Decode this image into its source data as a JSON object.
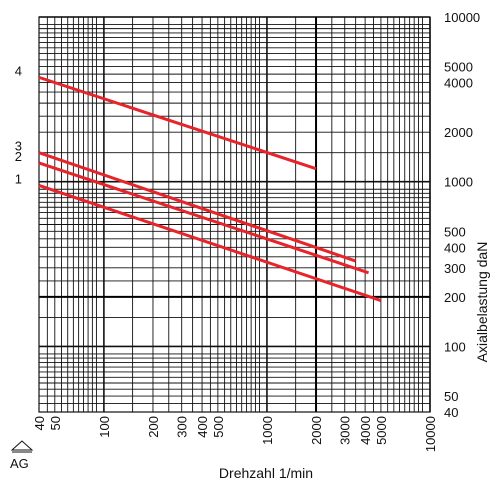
{
  "chart_data": {
    "type": "line",
    "title": "",
    "xlabel": "Drehzahl 1/min",
    "ylabel": "Axialbelastung daN",
    "x_scale": "log",
    "y_scale": "log",
    "xlim": [
      40,
      10000
    ],
    "ylim": [
      40,
      10000
    ],
    "x_ticks": [
      "40",
      "50",
      "100",
      "200",
      "300",
      "400",
      "500",
      "1000",
      "2000",
      "3000",
      "4000",
      "5000",
      "10000"
    ],
    "y_ticks": [
      "10000",
      "5000",
      "4000",
      "2000",
      "1000",
      "500",
      "400",
      "300",
      "200",
      "100",
      "50",
      "40"
    ],
    "grid": true,
    "series": [
      {
        "name": "1",
        "x": [
          40,
          5000
        ],
        "y": [
          950,
          190
        ]
      },
      {
        "name": "2",
        "x": [
          40,
          4200
        ],
        "y": [
          1300,
          280
        ]
      },
      {
        "name": "3",
        "x": [
          40,
          3500
        ],
        "y": [
          1500,
          330
        ]
      },
      {
        "name": "4",
        "x": [
          40,
          2000
        ],
        "y": [
          4300,
          1200
        ]
      }
    ],
    "left_label": "AG",
    "line_color": "#e8232a"
  }
}
